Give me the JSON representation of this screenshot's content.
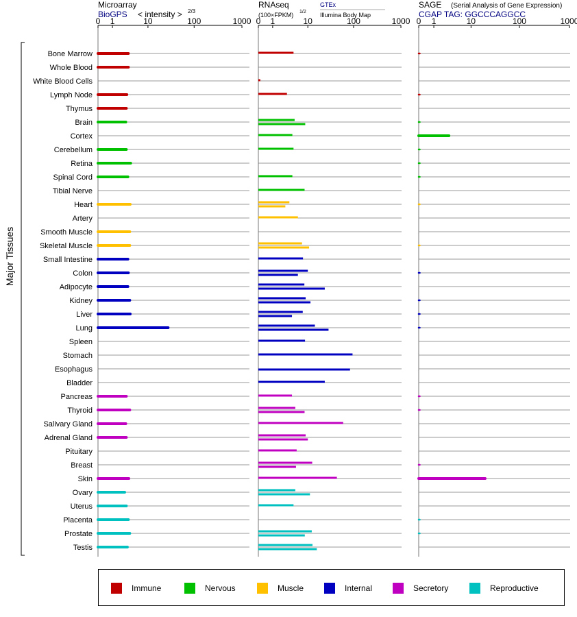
{
  "headers": {
    "microarray": {
      "title": "Microarray",
      "source": "BioGPS",
      "measure": "< intensity >",
      "exponent": "2/3",
      "ticks": [
        "0",
        "1",
        "10",
        "100",
        "1000"
      ]
    },
    "rnaseq": {
      "title": "RNAseq",
      "unit": "(100×FPKM)",
      "exponent": "1/2",
      "source1": "GTEx",
      "source2": "Illumina Body Map",
      "ticks": [
        "0",
        "1",
        "10",
        "100",
        "1000"
      ]
    },
    "sage": {
      "title": "SAGE",
      "subtitle": "(Serial Analysis of Gene Expression)",
      "tag": "CGAP TAG: GGCCCAGGCC",
      "ticks": [
        "0",
        "1",
        "10",
        "100",
        "1000"
      ]
    }
  },
  "y_axis_label": "Major Tissues",
  "colors": {
    "Immune": "#c00000",
    "Nervous": "#00c000",
    "Muscle": "#ffc000",
    "Internal": "#0000c0",
    "Secretory": "#c000c0",
    "Reproductive": "#00c0c0",
    "title_blue": "#000080",
    "grid": "#999999"
  },
  "legend": [
    {
      "name": "Immune",
      "color": "#c00000"
    },
    {
      "name": "Nervous",
      "color": "#00c000"
    },
    {
      "name": "Muscle",
      "color": "#ffc000"
    },
    {
      "name": "Internal",
      "color": "#0000c0"
    },
    {
      "name": "Secretory",
      "color": "#c000c0"
    },
    {
      "name": "Reproductive",
      "color": "#00c0c0"
    }
  ],
  "chart_data": {
    "type": "bar",
    "scale": "log",
    "xlim": [
      0,
      1000
    ],
    "categories": [
      "Bone Marrow",
      "Whole Blood",
      "White Blood Cells",
      "Lymph Node",
      "Thymus",
      "Brain",
      "Cortex",
      "Cerebellum",
      "Retina",
      "Spinal Cord",
      "Tibial Nerve",
      "Heart",
      "Artery",
      "Smooth Muscle",
      "Skeletal Muscle",
      "Small Intestine",
      "Colon",
      "Adipocyte",
      "Kidney",
      "Liver",
      "Lung",
      "Spleen",
      "Stomach",
      "Esophagus",
      "Bladder",
      "Pancreas",
      "Thyroid",
      "Salivary Gland",
      "Adrenal Gland",
      "Pituitary",
      "Breast",
      "Skin",
      "Ovary",
      "Uterus",
      "Placenta",
      "Prostate",
      "Testis"
    ],
    "groups": [
      "Immune",
      "Immune",
      "Immune",
      "Immune",
      "Immune",
      "Nervous",
      "Nervous",
      "Nervous",
      "Nervous",
      "Nervous",
      "Nervous",
      "Muscle",
      "Muscle",
      "Muscle",
      "Muscle",
      "Internal",
      "Internal",
      "Internal",
      "Internal",
      "Internal",
      "Internal",
      "Internal",
      "Internal",
      "Internal",
      "Internal",
      "Secretory",
      "Secretory",
      "Secretory",
      "Secretory",
      "Secretory",
      "Secretory",
      "Secretory",
      "Reproductive",
      "Reproductive",
      "Reproductive",
      "Reproductive",
      "Reproductive"
    ],
    "series": [
      {
        "name": "Microarray",
        "values": [
          3.3,
          3.3,
          null,
          3.0,
          2.9,
          2.8,
          null,
          2.9,
          3.8,
          3.2,
          null,
          3.7,
          null,
          3.6,
          3.6,
          3.2,
          3.3,
          3.2,
          3.6,
          3.7,
          28,
          null,
          null,
          null,
          null,
          2.9,
          3.6,
          2.8,
          2.9,
          null,
          null,
          3.4,
          2.6,
          2.9,
          3.3,
          3.6,
          3.1
        ]
      },
      {
        "name": "RNAseq GTEx",
        "values": [
          4.5,
          null,
          0.1,
          3.0,
          null,
          4.8,
          4.2,
          4.5,
          null,
          4.2,
          8.4,
          3.5,
          5.8,
          null,
          7.3,
          7.7,
          10,
          8.3,
          8.9,
          7.6,
          14.5,
          8.6,
          95,
          null,
          24,
          4.1,
          5.0,
          60,
          8.9,
          5.4,
          12.6,
          44,
          5.0,
          4.5,
          null,
          12.3,
          12.8
        ]
      },
      {
        "name": "RNAseq Illumina Body Map",
        "values": [
          null,
          null,
          null,
          null,
          null,
          8.7,
          null,
          null,
          null,
          null,
          null,
          2.7,
          null,
          null,
          10.7,
          null,
          5.8,
          24,
          11.5,
          4.1,
          29,
          null,
          null,
          84,
          null,
          null,
          8.4,
          null,
          10,
          null,
          5.2,
          null,
          11.2,
          null,
          null,
          8.5,
          16
        ]
      },
      {
        "name": "SAGE",
        "values": [
          0.02,
          null,
          null,
          0.02,
          null,
          0.02,
          3.0,
          0.02,
          0.02,
          0.02,
          null,
          0.01,
          null,
          null,
          0.01,
          null,
          0.03,
          null,
          0.03,
          0.03,
          0.03,
          null,
          null,
          null,
          null,
          0.03,
          0.03,
          null,
          null,
          null,
          0.03,
          20,
          null,
          null,
          0.02,
          0.02,
          null
        ]
      }
    ]
  }
}
